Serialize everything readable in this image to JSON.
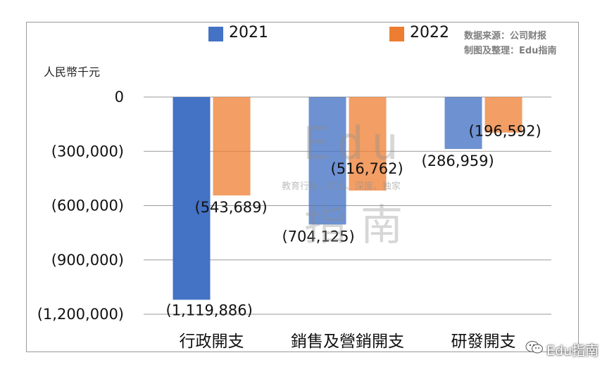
{
  "chart_data": {
    "type": "bar",
    "categories": [
      "行政開支",
      "銷售及營銷開支",
      "研發開支"
    ],
    "series": [
      {
        "name": "2021",
        "values": [
          -1119886,
          -704125,
          -286959
        ],
        "labels": [
          "(1,119,886)",
          "(704,125)",
          "(286,959)"
        ],
        "color": "#4472c4"
      },
      {
        "name": "2022",
        "values": [
          -543689,
          -516762,
          -196592
        ],
        "labels": [
          "(543,689)",
          "(516,762)",
          "(196,592)"
        ],
        "color": "#ed7d31"
      }
    ],
    "ylim": [
      -1200000,
      0
    ],
    "yticks": [
      0,
      -300000,
      -600000,
      -900000,
      -1200000
    ],
    "ytick_labels": [
      "0",
      "(300,000)",
      "(600,000)",
      "(900,000)",
      "(1,200,000)"
    ],
    "ylabel": "人民幣千元",
    "grid": true,
    "legend_position": "top"
  },
  "source": {
    "line1": "数据来源：公司财报",
    "line2": "制图及整理：Edu指南"
  },
  "watermark": {
    "big": "Edu",
    "tagline": "教育行业，前沿、深度、独家",
    "cn": "指南"
  },
  "footer": {
    "brand": "Edu指南"
  }
}
